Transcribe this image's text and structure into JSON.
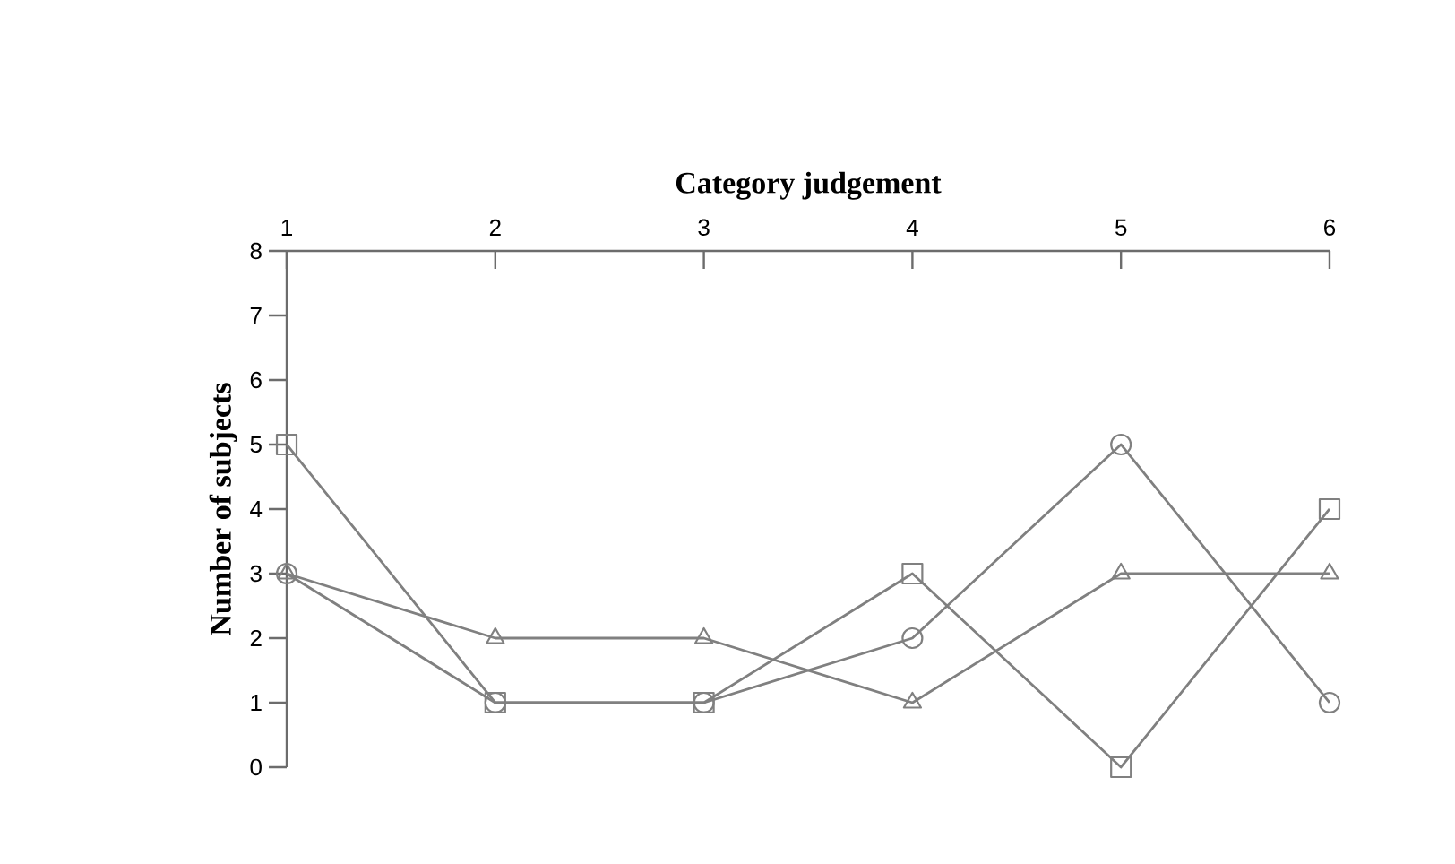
{
  "chart_data": {
    "type": "line",
    "xlabel": "Category judgement",
    "ylabel": "Number of subjects",
    "categories": [
      "1",
      "2",
      "3",
      "4",
      "5",
      "6"
    ],
    "series": [
      {
        "color": "#808080",
        "marker": "circle",
        "values": [
          3,
          1,
          1,
          2,
          5,
          1
        ]
      },
      {
        "color": "#808080",
        "marker": "square",
        "values": [
          5,
          1,
          1,
          3,
          0,
          4
        ]
      },
      {
        "color": "#808080",
        "marker": "triangle",
        "values": [
          3,
          2,
          2,
          1,
          3,
          3
        ]
      }
    ],
    "ylim": [
      0,
      8
    ],
    "yticks": [
      0,
      1,
      2,
      3,
      4,
      5,
      6,
      7,
      8
    ],
    "line_style": "solid"
  }
}
